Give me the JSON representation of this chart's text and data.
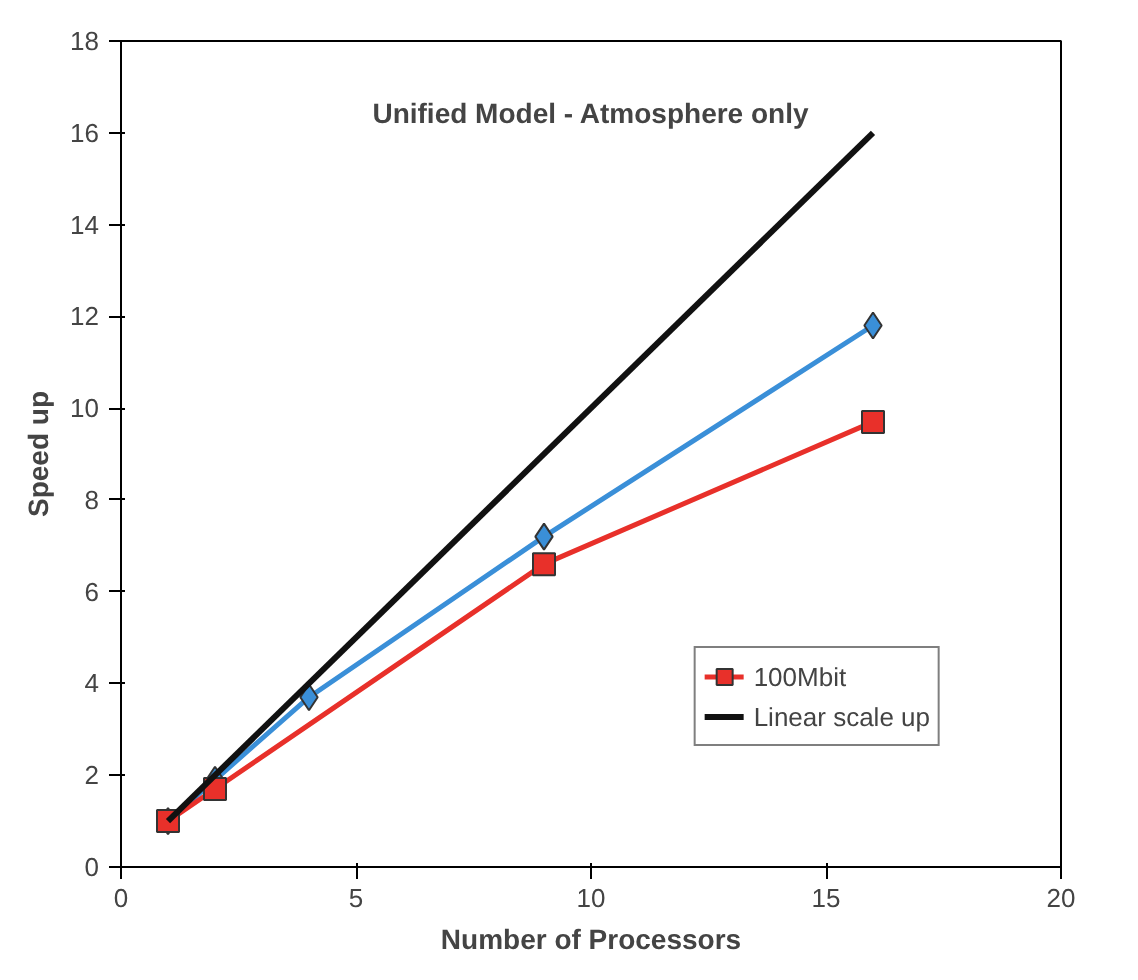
{
  "chart_data": {
    "type": "line",
    "title": "Unified Model - Atmosphere only",
    "xlabel": "Number of Processors",
    "ylabel": "Speed up",
    "xlim": [
      0,
      20
    ],
    "xticks": [
      0,
      5,
      10,
      15,
      20
    ],
    "ylim": [
      0,
      18
    ],
    "yticks": [
      0,
      2,
      4,
      6,
      8,
      10,
      12,
      14,
      16,
      18
    ],
    "grid": false,
    "legend": "bottom right",
    "series": [
      {
        "color": "#3a8fd8",
        "marker": "diamond",
        "x": [
          1,
          2,
          4,
          9,
          16
        ],
        "values": [
          1,
          1.9,
          3.7,
          7.2,
          11.8
        ]
      },
      {
        "name": "100Mbit",
        "color": "#e8302a",
        "marker": "square",
        "x": [
          1,
          2,
          9,
          16
        ],
        "values": [
          1,
          1.7,
          6.6,
          9.7
        ]
      },
      {
        "name": "Linear scale up",
        "color": "#111111",
        "marker": "none",
        "x": [
          1,
          16
        ],
        "values": [
          1,
          16
        ]
      }
    ]
  }
}
